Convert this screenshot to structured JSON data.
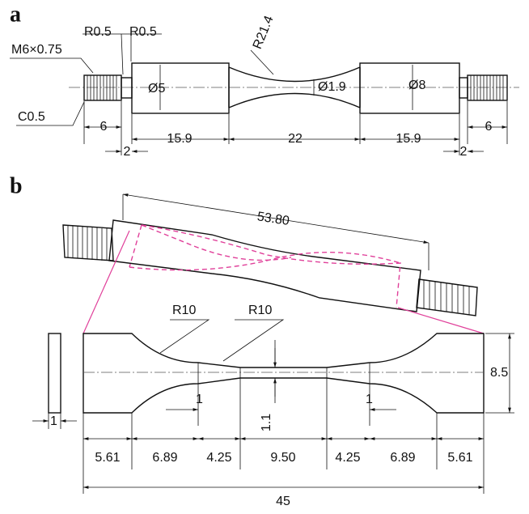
{
  "panel_a": {
    "label": "a",
    "thread": "M6×0.75",
    "radius_left": "R0.5",
    "radius_right": "R0.5",
    "gauge_radius": "R21.4",
    "diameter_grip_left": "Ø5",
    "diameter_gauge": "Ø1.9",
    "diameter_grip_right": "Ø8",
    "chamfer": "C0.5",
    "lengths": [
      "6",
      "2",
      "15.9",
      "22",
      "15.9",
      "2",
      "6"
    ]
  },
  "panel_b": {
    "label": "b",
    "overall_length_3d": "53.80",
    "radius_1": "R10",
    "radius_2": "R10",
    "width": "8.5",
    "thickness": "1",
    "step_left": "1",
    "step_right": "1",
    "gauge_width": "1.1",
    "lengths": [
      "5.61",
      "6.89",
      "4.25",
      "9.50",
      "4.25",
      "6.89",
      "5.61"
    ],
    "total_length": "45"
  }
}
